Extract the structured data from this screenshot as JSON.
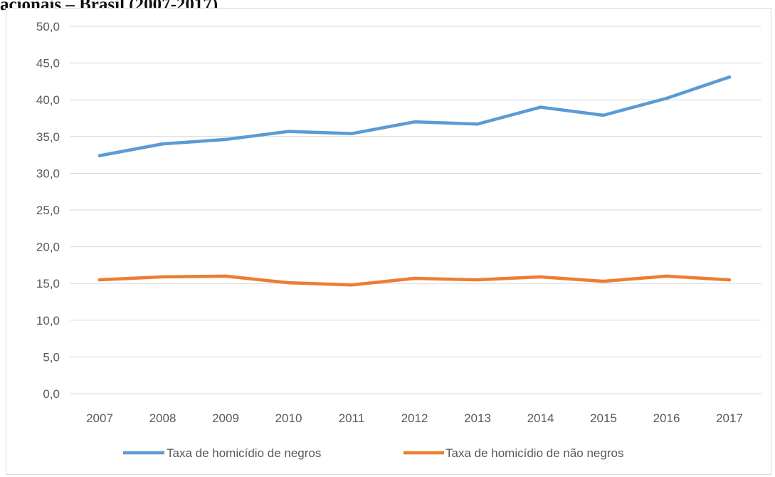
{
  "header": {
    "title": "acionais – Brasil (2007-2017)"
  },
  "colors": {
    "series_negros": "#5b9bd5",
    "series_nao_negros": "#ed7d31",
    "gridline": "#d9d9d9",
    "axis_text": "#595959"
  },
  "chart_data": {
    "type": "line",
    "title": "",
    "xlabel": "",
    "ylabel": "",
    "ylim": [
      0,
      50
    ],
    "y_ticks": [
      "0,0",
      "5,0",
      "10,0",
      "15,0",
      "20,0",
      "25,0",
      "30,0",
      "35,0",
      "40,0",
      "45,0",
      "50,0"
    ],
    "x": [
      "2007",
      "2008",
      "2009",
      "2010",
      "2011",
      "2012",
      "2013",
      "2014",
      "2015",
      "2016",
      "2017"
    ],
    "grid": "horizontal",
    "legend_position": "bottom",
    "series": [
      {
        "name": "Taxa de homicídio de negros",
        "color": "#5b9bd5",
        "values": [
          32.4,
          34.0,
          34.6,
          35.7,
          35.4,
          37.0,
          36.7,
          39.0,
          37.9,
          40.2,
          43.1
        ]
      },
      {
        "name": "Taxa de homicídio de não negros",
        "color": "#ed7d31",
        "values": [
          15.5,
          15.9,
          16.0,
          15.1,
          14.8,
          15.7,
          15.5,
          15.9,
          15.3,
          16.0,
          15.5
        ]
      }
    ]
  }
}
